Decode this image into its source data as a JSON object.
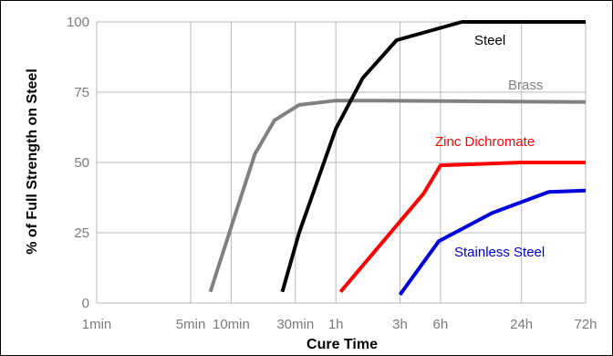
{
  "chart_data": {
    "type": "line",
    "xlabel": "Cure Time",
    "ylabel": "% of Full Strength on Steel",
    "x_scale": "log",
    "x_unit": "minutes",
    "xlim": [
      1,
      4320
    ],
    "ylim": [
      0,
      100
    ],
    "grid": true,
    "x_ticks": [
      {
        "label": "1min",
        "value": 1
      },
      {
        "label": "5min",
        "value": 5
      },
      {
        "label": "10min",
        "value": 10
      },
      {
        "label": "30min",
        "value": 30
      },
      {
        "label": "1h",
        "value": 60
      },
      {
        "label": "3h",
        "value": 180
      },
      {
        "label": "6h",
        "value": 360
      },
      {
        "label": "24h",
        "value": 1440
      },
      {
        "label": "72h",
        "value": 4320
      }
    ],
    "y_ticks": [
      {
        "label": "0",
        "value": 0
      },
      {
        "label": "25",
        "value": 25
      },
      {
        "label": "50",
        "value": 50
      },
      {
        "label": "75",
        "value": 75
      },
      {
        "label": "100",
        "value": 100
      }
    ],
    "series": [
      {
        "name": "Brass",
        "color": "#808080",
        "x": [
          7,
          10,
          15,
          21,
          32,
          60,
          120,
          4320
        ],
        "y": [
          4,
          27,
          53,
          65,
          70.5,
          72,
          72,
          71.5
        ]
      },
      {
        "name": "Steel",
        "color": "#000000",
        "x": [
          24,
          32,
          60,
          95,
          170,
          520,
          4320
        ],
        "y": [
          4,
          25,
          62,
          80,
          93.5,
          100,
          100
        ]
      },
      {
        "name": "Zinc Dichromate",
        "color": "#ff0000",
        "x": [
          65,
          270,
          360,
          1440,
          4320
        ],
        "y": [
          4,
          39,
          49,
          50,
          50
        ]
      },
      {
        "name": "Stainless Steel",
        "color": "#0000dd",
        "x": [
          180,
          350,
          870,
          2300,
          4320
        ],
        "y": [
          3,
          22,
          32,
          39.5,
          40
        ]
      }
    ]
  }
}
